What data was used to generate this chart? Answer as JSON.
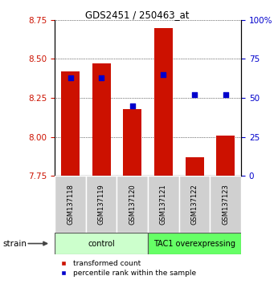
{
  "title": "GDS2451 / 250463_at",
  "samples": [
    "GSM137118",
    "GSM137119",
    "GSM137120",
    "GSM137121",
    "GSM137122",
    "GSM137123"
  ],
  "red_values": [
    8.42,
    8.47,
    8.18,
    8.7,
    7.87,
    8.01
  ],
  "blue_pct": [
    63,
    63,
    45,
    65,
    52,
    52
  ],
  "ylim_left": [
    7.75,
    8.75
  ],
  "ylim_right": [
    0,
    100
  ],
  "yticks_left": [
    7.75,
    8.0,
    8.25,
    8.5,
    8.75
  ],
  "yticks_right": [
    0,
    25,
    50,
    75,
    100
  ],
  "bar_color": "#cc1100",
  "dot_color": "#0000cc",
  "control_color": "#ccffcc",
  "overexp_color": "#66ff66",
  "tick_label_color_left": "#cc1100",
  "tick_label_color_right": "#0000cc",
  "bar_width": 0.6,
  "bar_bottom": 7.75,
  "legend_red": "transformed count",
  "legend_blue": "percentile rank within the sample",
  "group_labels": [
    "control",
    "TAC1 overexpressing"
  ],
  "group_ranges": [
    [
      0,
      3
    ],
    [
      3,
      6
    ]
  ],
  "strain_label": "strain"
}
